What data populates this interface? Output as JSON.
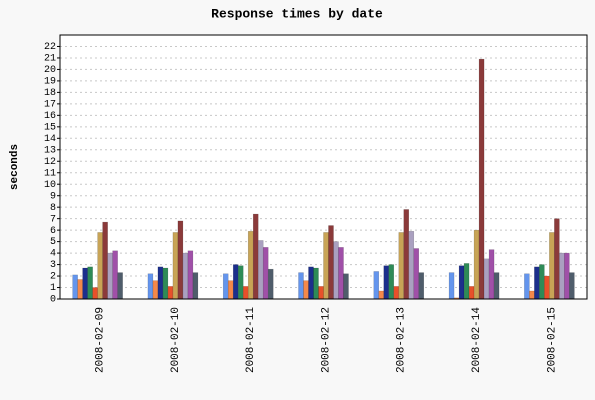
{
  "chart_data": {
    "type": "bar",
    "title": "Response times by date",
    "y_label": "seconds",
    "categories": [
      "2008-02-09",
      "2008-02-10",
      "2008-02-11",
      "2008-02-12",
      "2008-02-13",
      "2008-02-14",
      "2008-02-15"
    ],
    "series": [
      {
        "color": "#6495ed",
        "values": [
          2.1,
          2.2,
          2.2,
          2.3,
          2.4,
          2.3,
          2.2
        ]
      },
      {
        "color": "#f4884a",
        "values": [
          1.7,
          1.6,
          1.6,
          1.6,
          0.7,
          0.1,
          0.7
        ]
      },
      {
        "color": "#1c2f8c",
        "values": [
          2.7,
          2.8,
          3.0,
          2.8,
          2.9,
          2.9,
          2.8
        ]
      },
      {
        "color": "#2e8b57",
        "values": [
          2.8,
          2.7,
          2.9,
          2.7,
          3.0,
          3.1,
          3.0
        ]
      },
      {
        "color": "#e8502a",
        "values": [
          1.0,
          1.1,
          1.1,
          1.1,
          1.1,
          1.1,
          2.0
        ]
      },
      {
        "color": "#c8a456",
        "values": [
          5.8,
          5.8,
          5.9,
          5.8,
          5.8,
          6.0,
          5.8
        ]
      },
      {
        "color": "#8b3a3a",
        "values": [
          6.7,
          6.8,
          7.4,
          6.4,
          7.8,
          20.9,
          7.0
        ]
      },
      {
        "color": "#aaa0c0",
        "values": [
          4.0,
          4.0,
          5.1,
          5.0,
          5.9,
          3.5,
          4.0
        ]
      },
      {
        "color": "#a050a8",
        "values": [
          4.2,
          4.2,
          4.5,
          4.5,
          4.4,
          4.3,
          4.0
        ]
      },
      {
        "color": "#4f5d6b",
        "values": [
          2.3,
          2.3,
          2.6,
          2.2,
          2.3,
          2.3,
          2.3
        ]
      }
    ],
    "ylim": [
      0,
      23
    ],
    "yticks": [
      0,
      1,
      2,
      3,
      4,
      5,
      6,
      7,
      8,
      9,
      10,
      11,
      12,
      13,
      14,
      15,
      16,
      17,
      18,
      19,
      20,
      21,
      22
    ],
    "grid": true
  }
}
